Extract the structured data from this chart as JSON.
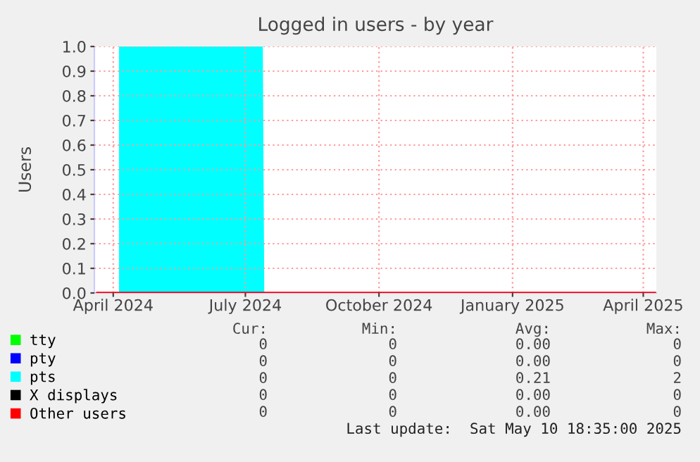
{
  "chart_data": {
    "type": "area",
    "title": "Logged in users - by year",
    "ylabel": "Users",
    "series": [
      {
        "name": "tty",
        "color": "#00ff00",
        "type": "line"
      },
      {
        "name": "pty",
        "color": "#0000ff",
        "type": "line"
      },
      {
        "name": "pts",
        "color": "#00ffff",
        "x": [
          "2024-04-05",
          "2024-07-13",
          "2024-07-14",
          "2025-04-09"
        ],
        "values": [
          1,
          1,
          0,
          0
        ]
      },
      {
        "name": "X displays",
        "color": "#000000",
        "type": "line"
      },
      {
        "name": "Other users",
        "color": "#ff0000",
        "type": "line",
        "x": [
          "2024-03-21",
          "2025-04-09"
        ],
        "values": [
          0,
          0
        ]
      }
    ],
    "xlim": [
      "2024-03-19",
      "2025-04-10"
    ],
    "xticks": [
      {
        "value": "2024-04-01",
        "label": "April 2024"
      },
      {
        "value": "2024-07-01",
        "label": "July 2024"
      },
      {
        "value": "2024-10-01",
        "label": "October 2024"
      },
      {
        "value": "2025-01-01",
        "label": "January 2025"
      },
      {
        "value": "2025-04-01",
        "label": "April 2025"
      }
    ],
    "ylim": [
      0,
      1
    ],
    "yticks": [
      {
        "value": 0,
        "label": "0.0"
      },
      {
        "value": 0.1,
        "label": "0.1"
      },
      {
        "value": 0.2,
        "label": "0.2"
      },
      {
        "value": 0.3,
        "label": "0.3"
      },
      {
        "value": 0.4,
        "label": "0.4"
      },
      {
        "value": 0.5,
        "label": "0.5"
      },
      {
        "value": 0.6,
        "label": "0.6"
      },
      {
        "value": 0.7,
        "label": "0.7"
      },
      {
        "value": 0.8,
        "label": "0.8"
      },
      {
        "value": 0.9,
        "label": "0.9"
      },
      {
        "value": 1,
        "label": "1.0"
      }
    ],
    "grid": true,
    "legend": "bottom left",
    "annotations": [
      "Cur:",
      "Min:",
      "Avg:",
      "Max:",
      "0",
      "0",
      "0.00",
      "0",
      "0",
      "0",
      "0.00",
      "0",
      "0",
      "0",
      "0.21",
      "2",
      "0",
      "0",
      "0.00",
      "0",
      "0",
      "0",
      "0.00",
      "0",
      "Last update:  Sat May 10 18:35:00 2025"
    ]
  }
}
